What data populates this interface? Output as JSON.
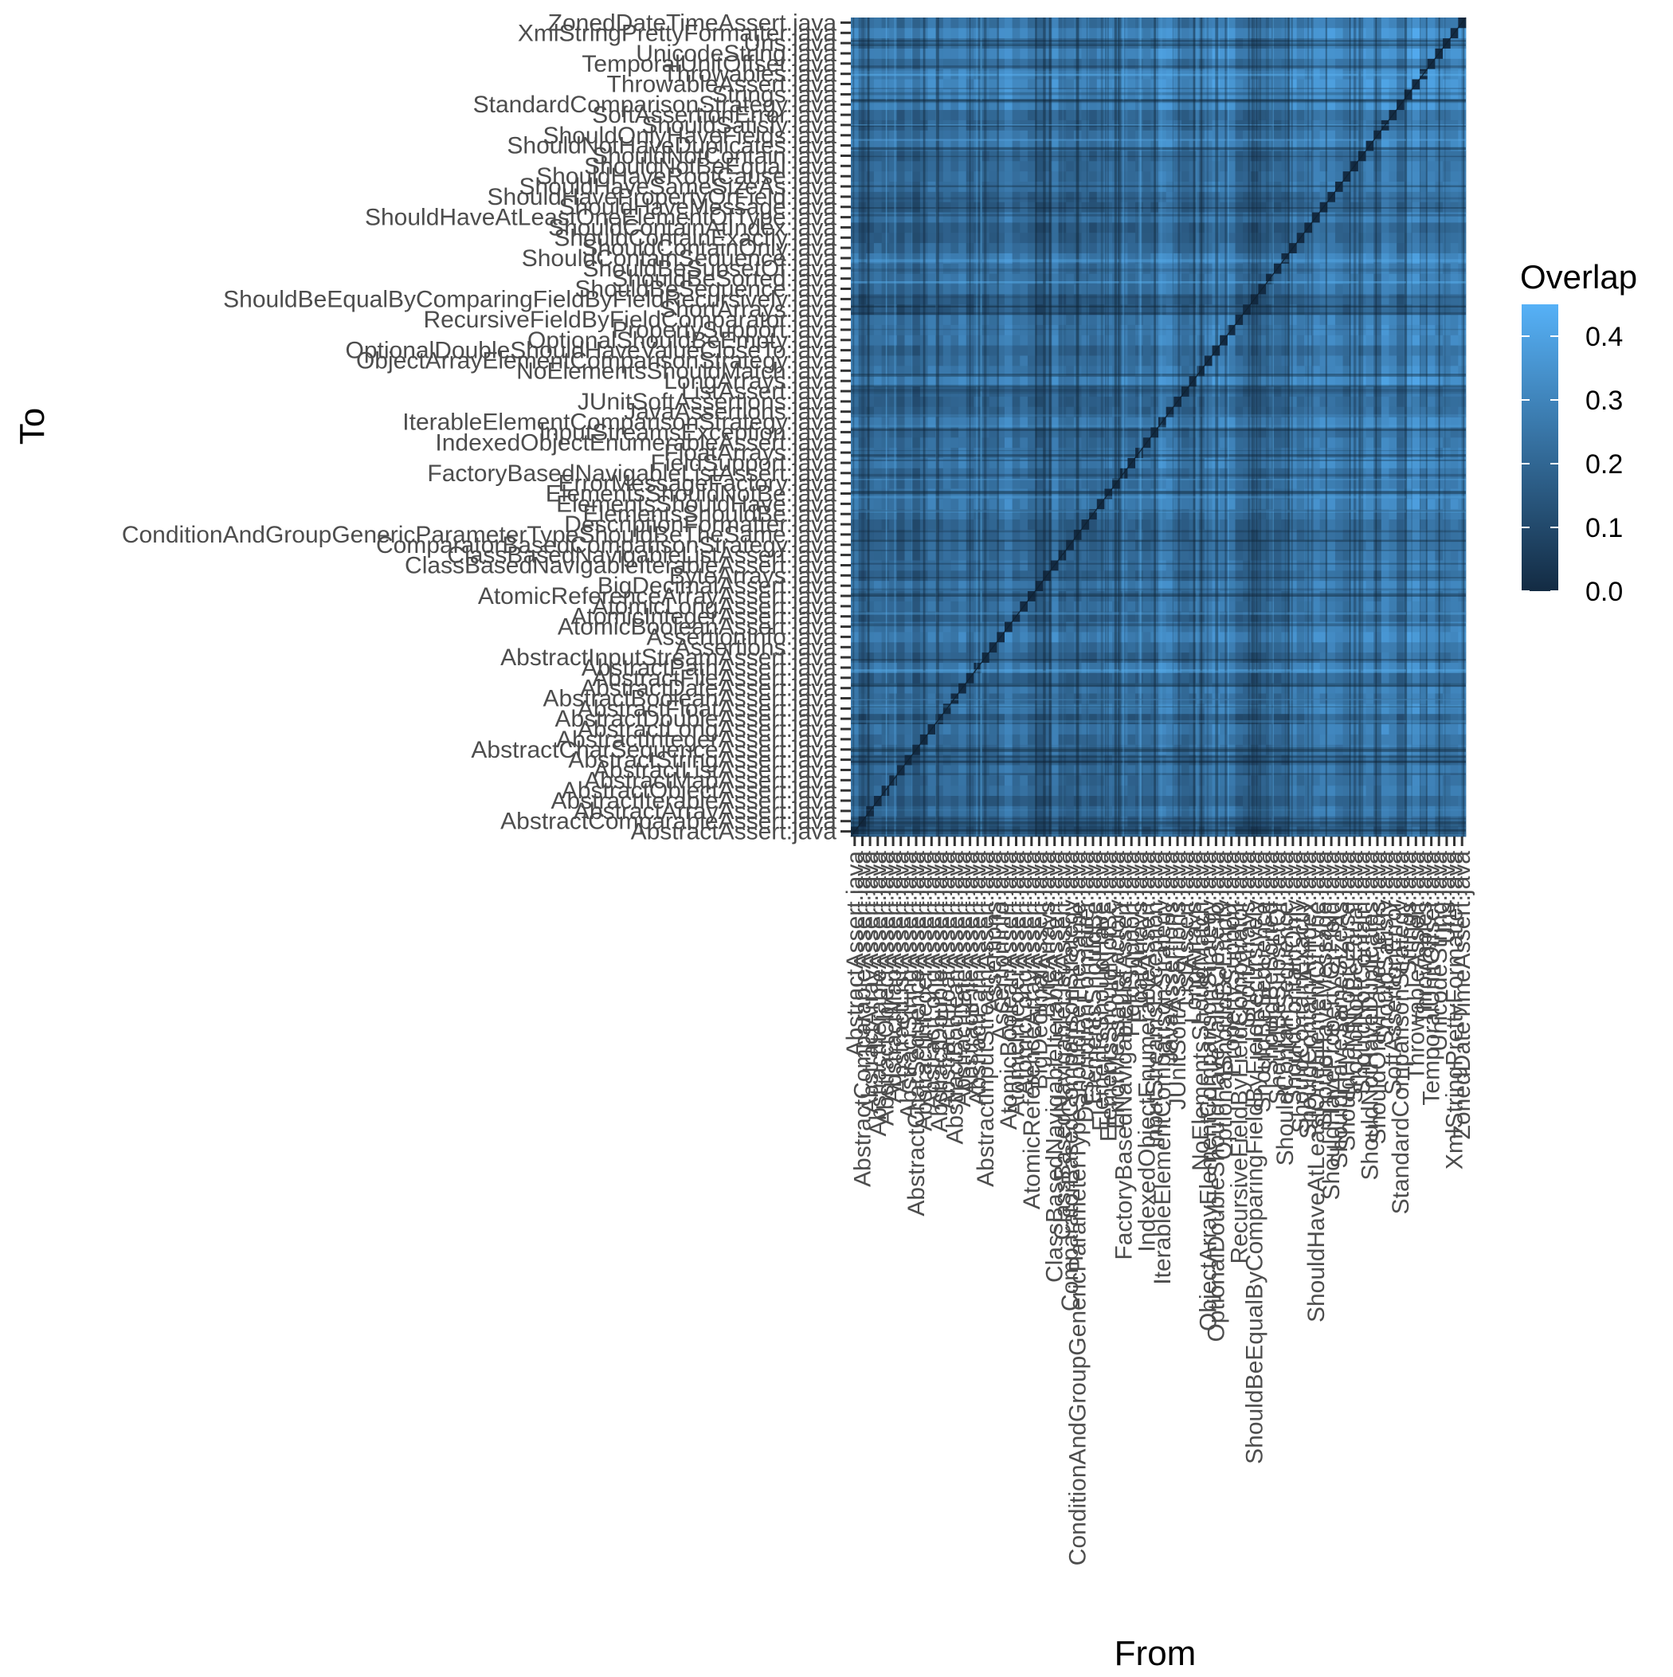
{
  "chart_data": {
    "type": "heatmap",
    "title": "",
    "xlabel": "From",
    "ylabel": "To",
    "legend": {
      "title": "Overlap",
      "position": "right",
      "ticks": [
        0.0,
        0.1,
        0.2,
        0.3,
        0.4
      ],
      "tick_labels": [
        "0.0",
        "0.1",
        "0.2",
        "0.3",
        "0.4"
      ],
      "range": [
        0,
        0.45
      ],
      "color_low": "#132B43",
      "color_high": "#56B1F7"
    },
    "grid": false,
    "diagonal_value": 0,
    "block_values": [
      0.16,
      0.18,
      0.24,
      0.2,
      0.22,
      0.26,
      0.21,
      0.23,
      0.28,
      0.3
    ],
    "categories": [
      "AbstractAssert.java",
      "AbstractComparableAssert.java",
      "AbstractArrayAssert.java",
      "AbstractIterableAssert.java",
      "AbstractObjectAssert.java",
      "AbstractMapAssert.java",
      "AbstractListAssert.java",
      "AbstractStringAssert.java",
      "AbstractCharSequenceAssert.java",
      "AbstractIntegerAssert.java",
      "AbstractLongAssert.java",
      "AbstractDoubleAssert.java",
      "AbstractFloatAssert.java",
      "AbstractBooleanAssert.java",
      "AbstractDateAssert.java",
      "AbstractFileAssert.java",
      "AbstractPathAssert.java",
      "AbstractInputStreamAssert.java",
      "Assertions.java",
      "AssertionInfo.java",
      "AtomicBooleanAssert.java",
      "AtomicIntegerAssert.java",
      "AtomicLongAssert.java",
      "AtomicReferenceArrayAssert.java",
      "BigDecimalAssert.java",
      "ByteArrays.java",
      "ClassBasedNavigableIterableAssert.java",
      "ClassBasedNavigableListAssert.java",
      "ComparatorBasedComparisonStrategy.java",
      "ConditionAndGroupGenericParameterTypeShouldBeTheSame.java",
      "DescriptionFormatter.java",
      "ElementsShouldBe.java",
      "ElementsShouldHave.java",
      "ElementsShouldNotBe.java",
      "ErrorMessageFactory.java",
      "FactoryBasedNavigableListAssert.java",
      "FieldSupport.java",
      "FloatArrays.java",
      "IndexedObjectEnumerableAssert.java",
      "InputStreamsException.java",
      "IterableElementComparisonStrategy.java",
      "JavaAssertions.java",
      "JUnitSoftAssertions.java",
      "ListAssert.java",
      "LongArrays.java",
      "NoElementsShouldMatch.java",
      "ObjectArrayElementComparisonStrategy.java",
      "OptionalDoubleShouldHaveValueCloseTo.java",
      "OptionalShouldBeEmpty.java",
      "PropertySupport.java",
      "RecursiveFieldByFieldComparator.java",
      "ShortArrays.java",
      "ShouldBeEqualByComparingFieldByFieldRecursively.java",
      "ShouldBeSequence.java",
      "ShouldBeSorted.java",
      "ShouldBeSubsetOf.java",
      "ShouldContainSequence.java",
      "ShouldContainOnly.java",
      "ShouldContainExactly.java",
      "ShouldContainAtIndex.java",
      "ShouldHaveAtLeastOneElementOfType.java",
      "ShouldHaveMessage.java",
      "ShouldHavePropertyOrField.java",
      "ShouldHaveSameSizeAs.java",
      "ShouldHaveRootCause.java",
      "ShouldNotBeEqual.java",
      "ShouldNotContain.java",
      "ShouldNotHaveDuplicates.java",
      "ShouldOnlyHaveFields.java",
      "ShouldSatisfy.java",
      "SoftAssertionError.java",
      "StandardComparisonStrategy.java",
      "Strings.java",
      "ThrowableAssert.java",
      "Throwables.java",
      "TemporalUnitOffset.java",
      "UnicodeString.java",
      "Uris.java",
      "XmlStringPrettyFormatter.java",
      "ZonedDateTimeAssert.java"
    ]
  }
}
